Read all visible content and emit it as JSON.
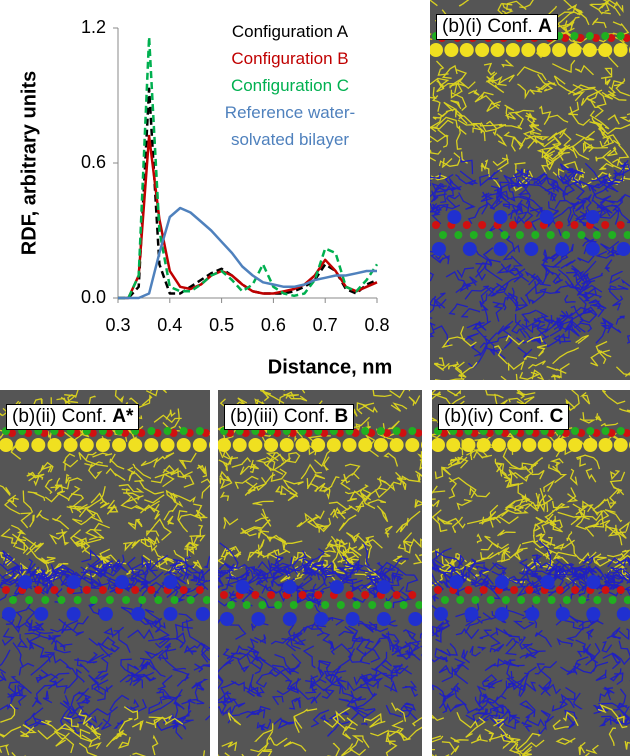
{
  "chart_data": {
    "type": "line",
    "y_label": "RDF, arbitrary units",
    "x_label": "Distance, nm",
    "x": [
      0.3,
      0.32,
      0.34,
      0.36,
      0.38,
      0.4,
      0.42,
      0.44,
      0.46,
      0.48,
      0.5,
      0.52,
      0.54,
      0.56,
      0.58,
      0.6,
      0.62,
      0.64,
      0.66,
      0.68,
      0.7,
      0.72,
      0.74,
      0.76,
      0.78,
      0.8
    ],
    "series": [
      {
        "name": "Configuration A",
        "color": "#000000",
        "dashed": true,
        "values": [
          0,
          0,
          0.05,
          0.93,
          0.15,
          0.02,
          0.02,
          0.05,
          0.08,
          0.11,
          0.13,
          0.1,
          0.06,
          0.03,
          0.02,
          0.02,
          0.02,
          0.03,
          0.05,
          0.08,
          0.15,
          0.12,
          0.04,
          0.02,
          0.06,
          0.08
        ]
      },
      {
        "name": "Configuration B",
        "color": "#c00000",
        "dashed": false,
        "values": [
          0,
          0,
          0.1,
          0.72,
          0.35,
          0.12,
          0.05,
          0.04,
          0.06,
          0.1,
          0.12,
          0.1,
          0.06,
          0.03,
          0.02,
          0.02,
          0.03,
          0.04,
          0.06,
          0.1,
          0.17,
          0.12,
          0.05,
          0.03,
          0.05,
          0.07
        ]
      },
      {
        "name": "Configuration C",
        "color": "#00b050",
        "dashed": true,
        "values": [
          0,
          0,
          0.1,
          1.16,
          0.3,
          0.05,
          0.03,
          0.03,
          0.06,
          0.1,
          0.12,
          0.08,
          0.03,
          0.06,
          0.15,
          0.05,
          0.02,
          0.01,
          0.02,
          0.08,
          0.22,
          0.2,
          0.05,
          0.03,
          0.08,
          0.15
        ]
      },
      {
        "name": "Reference water- solvated bilayer",
        "color": "#4f81bd",
        "dashed": false,
        "values": [
          0,
          0,
          0,
          0.02,
          0.2,
          0.36,
          0.4,
          0.38,
          0.34,
          0.3,
          0.25,
          0.2,
          0.14,
          0.1,
          0.07,
          0.06,
          0.05,
          0.05,
          0.06,
          0.08,
          0.09,
          0.1,
          0.1,
          0.11,
          0.12,
          0.12
        ]
      }
    ],
    "xlim": [
      0.3,
      0.8
    ],
    "xticks": [
      0.3,
      0.4,
      0.5,
      0.6,
      0.7,
      0.8
    ],
    "ylim": [
      0,
      1.2
    ],
    "yticks": [
      {
        "value": 0,
        "label": "0.0"
      },
      0.6,
      1.2
    ],
    "grid": false
  },
  "panels": [
    {
      "label": "(b)(i) Conf.",
      "conf": "A"
    },
    {
      "label": "(b)(ii) Conf.",
      "conf": "A*"
    },
    {
      "label": "(b)(iii) Conf.",
      "conf": "B"
    },
    {
      "label": "(b)(iv) Conf.",
      "conf": "C"
    }
  ]
}
